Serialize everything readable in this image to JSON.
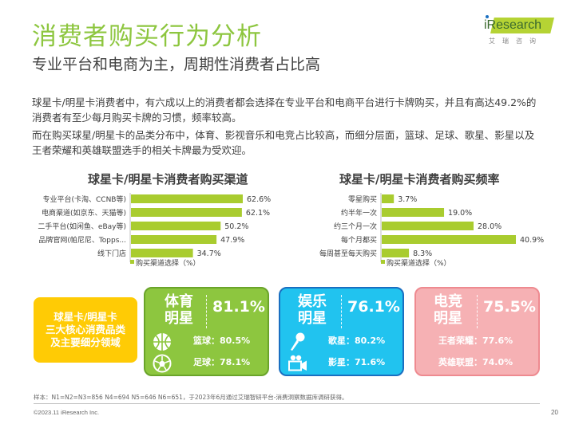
{
  "header": {
    "title": "消费者购买行为分析",
    "subtitle": "专业平台和电商为主，周期性消费者占比高"
  },
  "logo": {
    "brand": "iResearch",
    "sub": "艾瑞咨询"
  },
  "paragraphs": [
    "球星卡/明星卡消费者中，有六成以上的消费者都会选择在专业平台和电商平台进行卡牌购买，并且有高达49.2%的消费者有至少每月购买卡牌的习惯，频率较高。",
    "而在购买球星/明星卡的品类分布中，体育、影视音乐和电竞占比较高，而细分层面，篮球、足球、歌星、影星以及王者荣耀和英雄联盟选手的相关卡牌最为受欢迎。"
  ],
  "colors": {
    "brand_green": "#8dc63f",
    "bar_green": "#a9cc2f",
    "core_yellow": "#ffcb05",
    "sport_green": "#8dc63f",
    "ent_blue": "#21c3ef",
    "esports_pink": "#f6b1b4"
  },
  "chart_data": [
    {
      "type": "bar",
      "orientation": "horizontal",
      "title": "球星卡/明星卡消费者购买渠道",
      "categories": [
        "专业平台(卡淘、CCNB等)",
        "电商渠道(如京东、天猫等)",
        "二手平台(如闲鱼、eBay等)",
        "品牌官网(帕尼尼、Topps...",
        "线下门店"
      ],
      "values": [
        62.6,
        62.1,
        50.2,
        47.9,
        34.7
      ],
      "value_labels": [
        "62.6%",
        "62.1%",
        "50.2%",
        "47.9%",
        "34.7%"
      ],
      "legend": "购买渠道选择（%）",
      "legend_position": "bottom",
      "xlim": [
        0,
        62.6
      ],
      "grid": false
    },
    {
      "type": "bar",
      "orientation": "horizontal",
      "title": "球星卡/明星卡消费者购买频率",
      "categories": [
        "零星购买",
        "约半年一次",
        "约三个月一次",
        "每个月都买",
        "每周甚至每天购买"
      ],
      "values": [
        3.7,
        19.0,
        28.0,
        40.9,
        8.3
      ],
      "value_labels": [
        "3.7%",
        "19.0%",
        "28.0%",
        "40.9%",
        "8.3%"
      ],
      "legend": "购买渠道选择（%）",
      "legend_position": "bottom",
      "xlim": [
        0,
        40.9
      ],
      "grid": false
    }
  ],
  "core_box": {
    "lines": [
      "球星卡/明星卡",
      "三大核心消费品类",
      "及主要细分领域"
    ]
  },
  "categories": [
    {
      "name_line1": "体育",
      "name_line2": "明星",
      "percent": "81.1%",
      "subs": [
        {
          "icon": "basketball-icon",
          "text": "篮球：80.5%"
        },
        {
          "icon": "soccer-ball-icon",
          "text": "足球：78.1%"
        }
      ]
    },
    {
      "name_line1": "娱乐",
      "name_line2": "明星",
      "percent": "76.1%",
      "subs": [
        {
          "icon": "microphone-icon",
          "text": "歌星：80.2%"
        },
        {
          "icon": "video-camera-icon",
          "text": "影星：71.6%"
        }
      ]
    },
    {
      "name_line1": "电竞",
      "name_line2": "明星",
      "percent": "75.5%",
      "subs": [
        {
          "icon": "",
          "text": "王者荣耀：77.6%"
        },
        {
          "icon": "",
          "text": "英雄联盟：74.0%"
        }
      ]
    }
  ],
  "footer": {
    "note": "样本：N1=N2=N3=856 N4=694 N5=646 N6=651，于2023年6月通过艾瑞智研平台-消费洞察数据库调研获得。",
    "copyright": "©2023.11 iResearch Inc.",
    "page": "20"
  }
}
